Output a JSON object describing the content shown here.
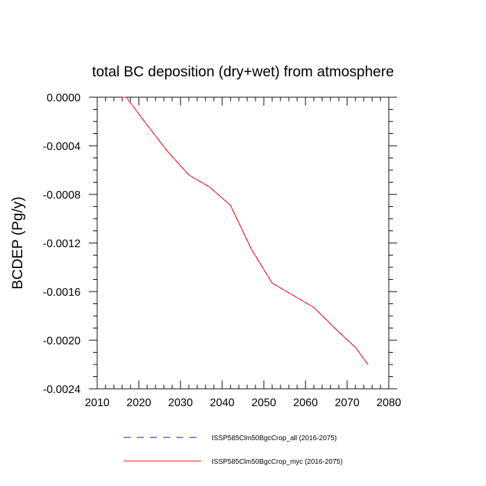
{
  "chart_data": {
    "type": "line",
    "title": "total BC deposition (dry+wet) from atmosphere",
    "ylabel": "BCDEP  (Pg/y)",
    "xlabel": "",
    "xlim": [
      2010,
      2080
    ],
    "ylim": [
      -0.0024,
      0.0
    ],
    "xticks": [
      "2010",
      "2020",
      "2030",
      "2040",
      "2050",
      "2060",
      "2070",
      "2080"
    ],
    "yticks": [
      "0.0000",
      "-0.0004",
      "-0.0008",
      "-0.0012",
      "-0.0016",
      "-0.0020",
      "-0.0024"
    ],
    "grid": false,
    "legend_position": "bottom",
    "series": [
      {
        "name": "ISSP585Clm50BgcCrop_all (2016-2075)",
        "color": "#0000ff",
        "style": "dashed",
        "x": [
          2016,
          2017,
          2022,
          2027,
          2032,
          2037,
          2042,
          2047,
          2052,
          2057,
          2062,
          2067,
          2072,
          2075
        ],
        "values": [
          0.0,
          0.0,
          -0.00023,
          -0.00045,
          -0.00064,
          -0.00074,
          -0.00089,
          -0.00125,
          -0.00153,
          -0.00163,
          -0.00173,
          -0.0019,
          -0.00206,
          -0.0022
        ]
      },
      {
        "name": "ISSP585Clm50BgcCrop_myc (2016-2075)",
        "color": "#ff0000",
        "style": "solid",
        "x": [
          2016,
          2017,
          2022,
          2027,
          2032,
          2037,
          2042,
          2047,
          2052,
          2057,
          2062,
          2067,
          2072,
          2075
        ],
        "values": [
          0.0,
          0.0,
          -0.00023,
          -0.00045,
          -0.00064,
          -0.00074,
          -0.00089,
          -0.00125,
          -0.00153,
          -0.00163,
          -0.00173,
          -0.0019,
          -0.00206,
          -0.0022
        ]
      }
    ]
  }
}
